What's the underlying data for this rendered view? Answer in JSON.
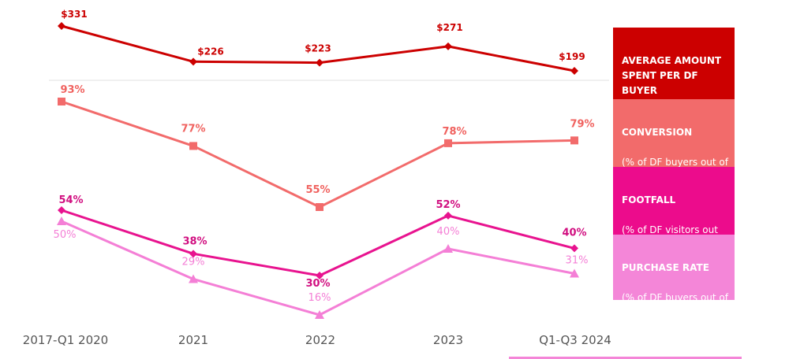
{
  "chart_data": {
    "type": "line",
    "categories": [
      "2017-Q1 2020",
      "2021",
      "2022",
      "2023",
      "Q1-Q3 2024"
    ],
    "series": [
      {
        "name": "AVERAGE AMOUNT SPENT PER DF BUYER",
        "values": [
          331,
          226,
          223,
          271,
          199
        ],
        "labels": [
          "$331",
          "$226",
          "$223",
          "$271",
          "$199"
        ],
        "color": "#cc0000",
        "marker": "diamond",
        "label_color": "#cc0000"
      },
      {
        "name": "CONVERSION",
        "subtitle": "(% of DF buyers out of DF visitors)",
        "values": [
          93,
          77,
          55,
          78,
          79
        ],
        "labels": [
          "93%",
          "77%",
          "55%",
          "78%",
          "79%"
        ],
        "color": "#f26b6b",
        "marker": "square",
        "label_color": "#f0625f"
      },
      {
        "name": "FOOTFALL",
        "subtitle": "(% of DF visitors out of total PAX)",
        "values": [
          54,
          38,
          30,
          52,
          40
        ],
        "labels": [
          "54%",
          "38%",
          "30%",
          "52%",
          "40%"
        ],
        "color": "#e8138f",
        "marker": "diamond",
        "label_color": "#d10f80"
      },
      {
        "name": "PURCHASE RATE",
        "subtitle": "(% of DF buyers out of total PAX)",
        "values": [
          50,
          29,
          16,
          40,
          31
        ],
        "labels": [
          "50%",
          "29%",
          "16%",
          "40%",
          "31%"
        ],
        "color": "#f47fd6",
        "marker": "triangle",
        "label_color": "#f47fd6"
      }
    ],
    "legend_position": "right",
    "grid": false
  },
  "legend": [
    {
      "title": "AVERAGE AMOUNT SPENT PER DF BUYER",
      "subtitle": "",
      "color": "#cc0000"
    },
    {
      "title": "CONVERSION",
      "subtitle": "(% of DF buyers out of DF visitors)",
      "color": "#f26b6b"
    },
    {
      "title": "FOOTFALL",
      "subtitle": "(% of DF visitors out of total PAX)",
      "color": "#ec0c8c"
    },
    {
      "title": "PURCHASE RATE",
      "subtitle": "(% of DF buyers out of total PAX)",
      "color": "#f486d8"
    }
  ]
}
